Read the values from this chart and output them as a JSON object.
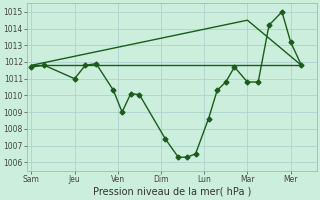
{
  "xlabel": "Pression niveau de la mer( hPa )",
  "background_color": "#cceedd",
  "grid_color": "#aacccc",
  "line_color": "#1a5c1a",
  "x_tick_labels": [
    "Sam",
    "Jeu",
    "Ven",
    "Dim",
    "Lun",
    "Mar",
    "Mer"
  ],
  "x_tick_positions": [
    0,
    2,
    4,
    6,
    8,
    10,
    12
  ],
  "ylim": [
    1005.5,
    1015.5
  ],
  "yticks": [
    1006,
    1007,
    1008,
    1009,
    1010,
    1011,
    1012,
    1013,
    1014,
    1015
  ],
  "xlim": [
    -0.2,
    13.2
  ],
  "line1_x": [
    0,
    0.6,
    2.0,
    2.5,
    3.0,
    3.8,
    4.2,
    4.6,
    5.0,
    6.2,
    6.8,
    7.2,
    7.6,
    8.2,
    8.6,
    9.0,
    9.4,
    10.0,
    10.5,
    11.0,
    11.6,
    12.0,
    12.5
  ],
  "line1_y": [
    1011.7,
    1011.8,
    1011.0,
    1011.8,
    1011.9,
    1010.3,
    1009.0,
    1010.1,
    1010.05,
    1007.4,
    1006.3,
    1006.3,
    1006.5,
    1008.6,
    1010.3,
    1010.8,
    1011.7,
    1010.8,
    1010.8,
    1014.2,
    1015.0,
    1013.2,
    1011.8
  ],
  "flat_line_x": [
    0,
    12.5
  ],
  "flat_line_y": [
    1011.8,
    1011.8
  ],
  "trend_line_x": [
    0,
    10.0,
    12.5
  ],
  "trend_line_y": [
    1011.8,
    1014.5,
    1011.8
  ],
  "marker": "D",
  "marker_size": 2.5,
  "line_width": 1.0,
  "tick_fontsize": 5.5,
  "xlabel_fontsize": 7
}
